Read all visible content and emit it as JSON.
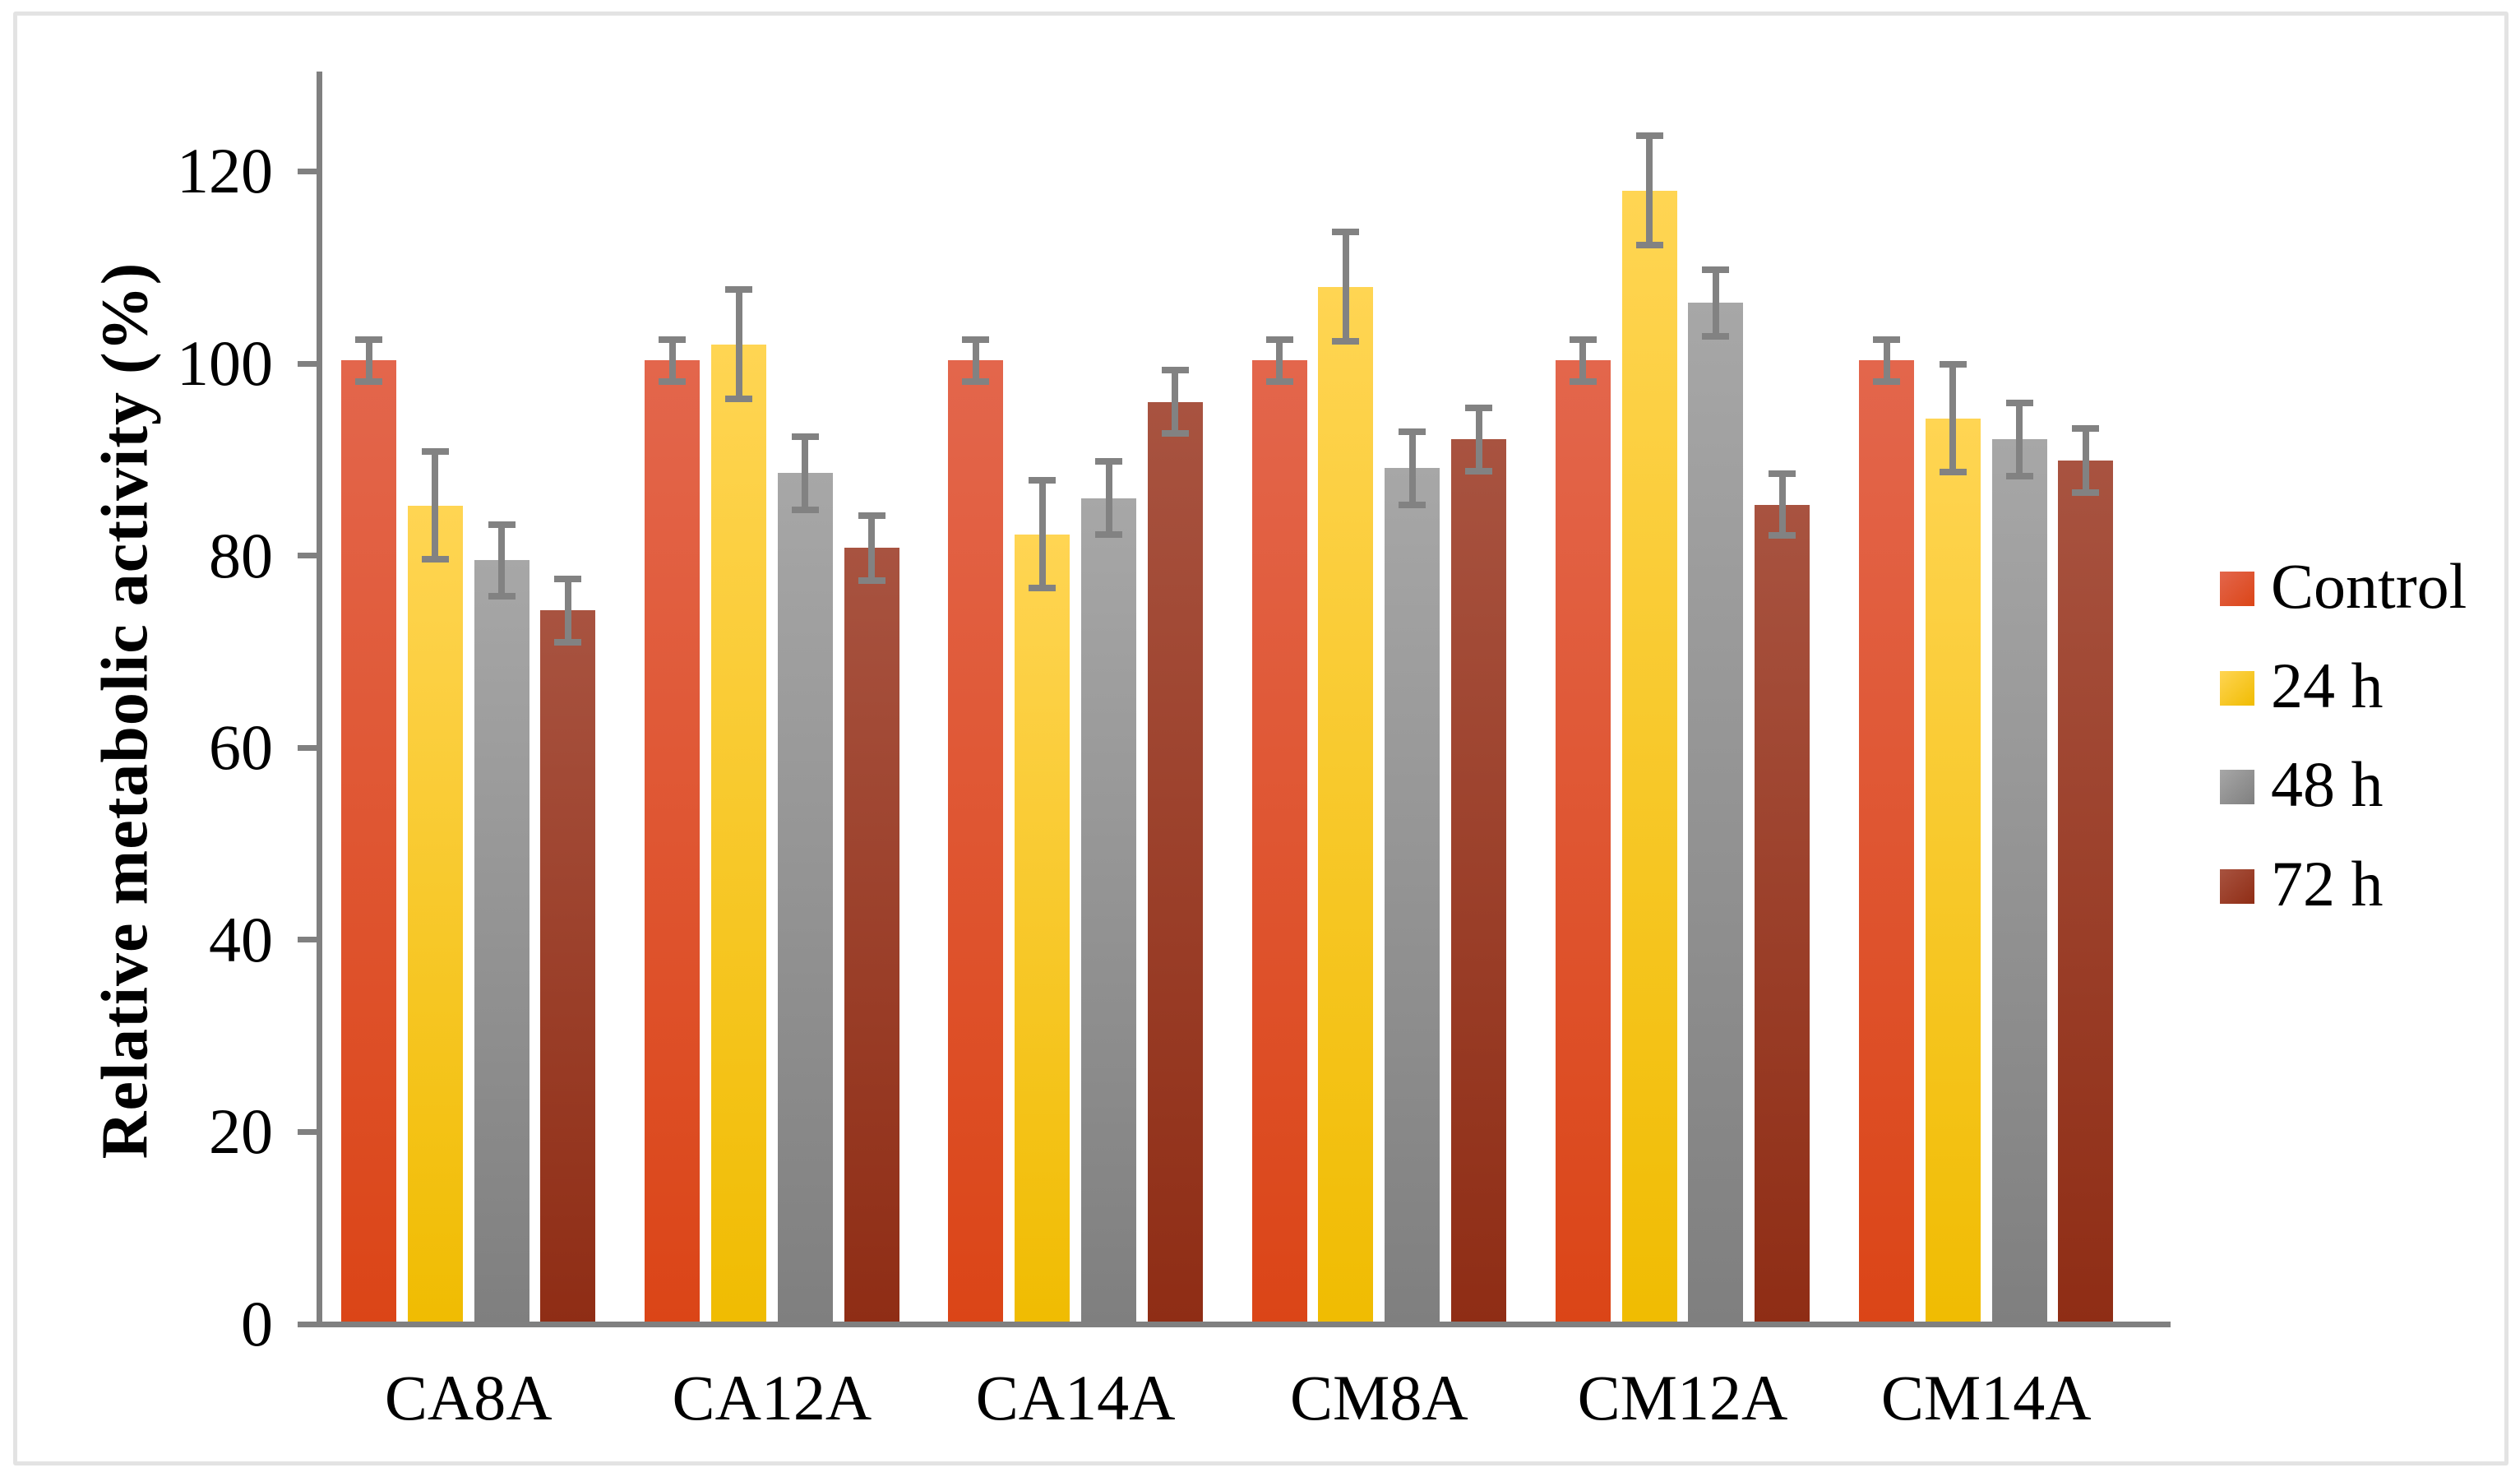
{
  "figure": {
    "background": "#ffffff",
    "border_color": "#E3E3E3"
  },
  "chart_data": {
    "type": "bar",
    "title": "",
    "xlabel": "",
    "ylabel": "Relative metabolic activity (%)",
    "ylim": [
      0,
      130
    ],
    "yticks": [
      0,
      20,
      40,
      60,
      80,
      100,
      120
    ],
    "grid": false,
    "legend_position": "right",
    "axis_color": "#808080",
    "error_bar_color": "#828282",
    "categories": [
      "CA8A",
      "CA12A",
      "CA14A",
      "CM8A",
      "CM12A",
      "CM14A"
    ],
    "series": [
      {
        "name": "Control",
        "color_top": "#E3664C",
        "color_bottom": "#DB4517",
        "values": [
          100.3,
          100.3,
          100.3,
          100.3,
          100.3,
          100.3
        ],
        "errors": [
          2.2,
          2.2,
          2.2,
          2.2,
          2.2,
          2.2
        ]
      },
      {
        "name": "24 h",
        "color_top": "#FFD553",
        "color_bottom": "#F0BC02",
        "values": [
          85.2,
          102.0,
          82.2,
          108.0,
          118.0,
          94.3
        ],
        "errors": [
          5.6,
          5.7,
          5.6,
          5.7,
          5.7,
          5.6
        ]
      },
      {
        "name": "48 h",
        "color_top": "#A7A7A7",
        "color_bottom": "#7F7F7F",
        "values": [
          79.5,
          88.6,
          86.0,
          89.1,
          106.3,
          92.1
        ],
        "errors": [
          3.7,
          3.8,
          3.8,
          3.8,
          3.5,
          3.8
        ]
      },
      {
        "name": "72 h",
        "color_top": "#A85340",
        "color_bottom": "#8F2D15",
        "values": [
          74.3,
          80.8,
          96.0,
          92.1,
          85.3,
          89.9
        ],
        "errors": [
          3.3,
          3.4,
          3.3,
          3.3,
          3.2,
          3.3
        ]
      }
    ]
  }
}
